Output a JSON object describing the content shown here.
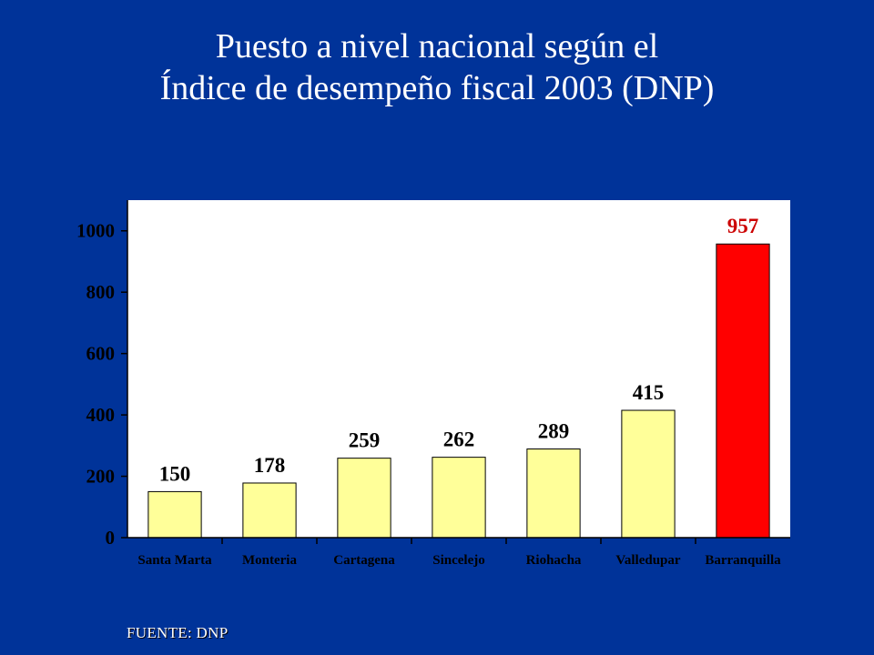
{
  "title_line1": "Puesto a nivel nacional según el",
  "title_line2": "Índice de desempeño fiscal 2003 (DNP)",
  "source": "FUENTE: DNP",
  "colors": {
    "background": "#003399",
    "bar": "#ffff99",
    "bar_highlight": "#ff0000",
    "label": "#000000",
    "label_highlight": "#cc0000",
    "axis": "#000000"
  },
  "chart_data": {
    "type": "bar",
    "categories": [
      "Santa Marta",
      "Monteria",
      "Cartagena",
      "Sincelejo",
      "Riohacha",
      "Valledupar",
      "Barranquilla"
    ],
    "values": [
      150,
      178,
      259,
      262,
      289,
      415,
      957
    ],
    "data_labels": [
      "150",
      "178",
      "259",
      "262",
      "289",
      "415",
      "957"
    ],
    "highlight_index": 6,
    "ylim": [
      0,
      1100
    ],
    "yticks": [
      0,
      200,
      400,
      600,
      800,
      1000
    ],
    "ytick_labels": [
      "0",
      "200",
      "400",
      "600",
      "800",
      "1000"
    ],
    "grid": false,
    "legend": "none"
  }
}
